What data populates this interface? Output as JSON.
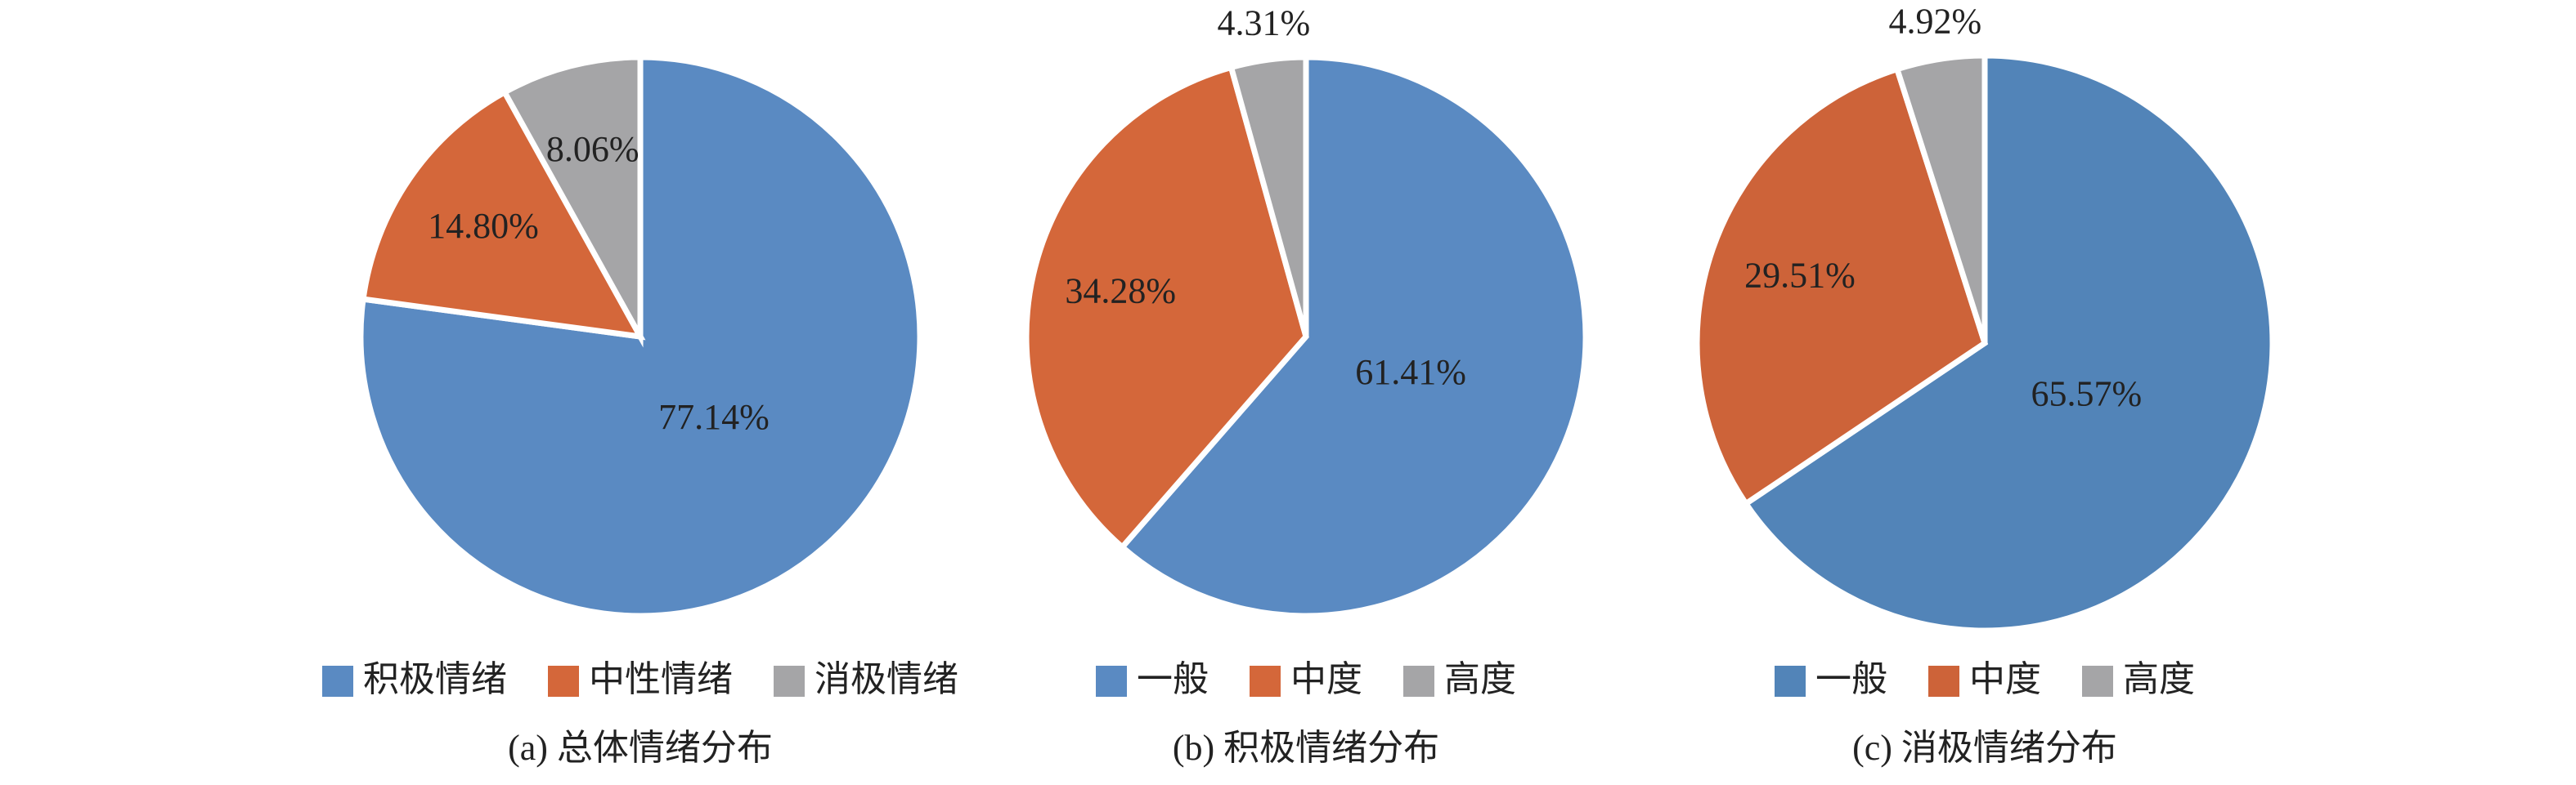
{
  "chart_data": [
    {
      "type": "pie",
      "title": "(a) 总体情绪分布",
      "categories": [
        "积极情绪",
        "中性情绪",
        "消极情绪"
      ],
      "values": [
        77.14,
        14.8,
        8.06
      ],
      "value_labels": [
        "77.14%",
        "14.80%",
        "8.06%"
      ],
      "colors": [
        "#5a8ac2",
        "#d4673a",
        "#a5a5a7"
      ]
    },
    {
      "type": "pie",
      "title": "(b) 积极情绪分布",
      "categories": [
        "一般",
        "中度",
        "高度"
      ],
      "values": [
        61.41,
        34.28,
        4.31
      ],
      "value_labels": [
        "61.41%",
        "34.28%",
        "4.31%"
      ],
      "colors": [
        "#5a8ac2",
        "#d4673a",
        "#a5a5a7"
      ]
    },
    {
      "type": "pie",
      "title": "(c) 消极情绪分布",
      "categories": [
        "一般",
        "中度",
        "高度"
      ],
      "values": [
        65.57,
        29.51,
        4.92
      ],
      "value_labels": [
        "65.57%",
        "29.51%",
        "4.92%"
      ],
      "colors": [
        "#5284b8",
        "#cd6339",
        "#a5a5a7"
      ]
    }
  ]
}
